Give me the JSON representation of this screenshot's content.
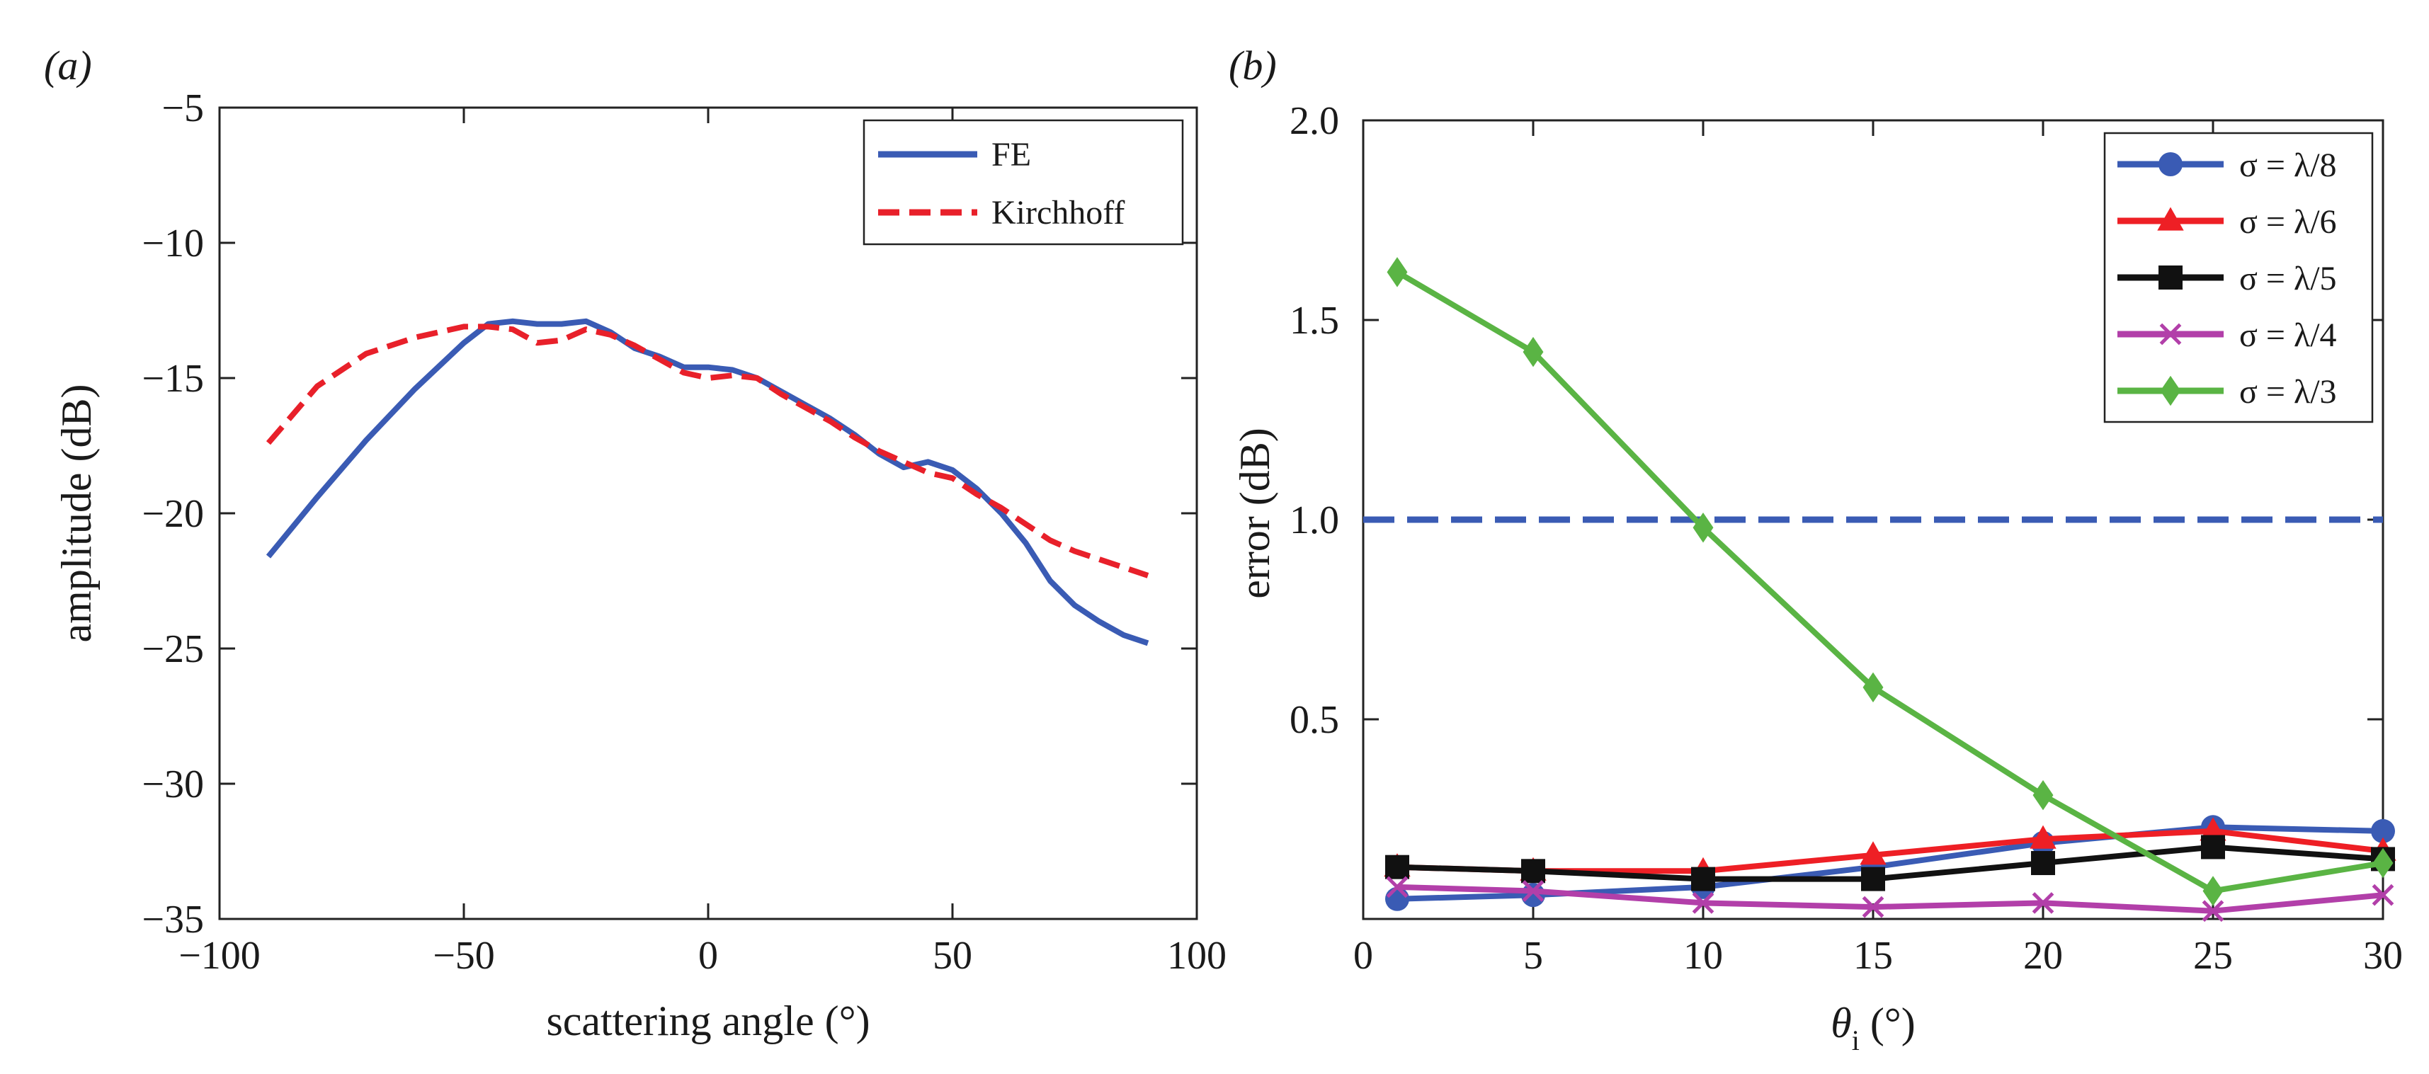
{
  "chart_data": [
    {
      "panel": "(a)",
      "type": "line",
      "xlabel": "scattering angle (°)",
      "ylabel": "amplitude (dB)",
      "xlim": [
        -100,
        100
      ],
      "ylim": [
        -35,
        -5
      ],
      "xticks": [
        -100,
        -50,
        0,
        50,
        100
      ],
      "yticks": [
        -35,
        -30,
        -25,
        -20,
        -15,
        -10,
        -5
      ],
      "xtick_labels": [
        "−100",
        "−50",
        "0",
        "50",
        "100"
      ],
      "ytick_labels": [
        "−35",
        "−30",
        "−25",
        "−20",
        "−15",
        "−10",
        "−5"
      ],
      "legend_position": "top-right",
      "series": [
        {
          "name": "FE",
          "color": "#3a5bb4",
          "style": "solid",
          "x": [
            -90,
            -80,
            -70,
            -60,
            -50,
            -45,
            -40,
            -35,
            -30,
            -25,
            -20,
            -15,
            -10,
            -5,
            0,
            5,
            10,
            15,
            20,
            25,
            30,
            35,
            40,
            45,
            50,
            55,
            60,
            65,
            70,
            75,
            80,
            85,
            90
          ],
          "y": [
            -21.6,
            -19.4,
            -17.3,
            -15.4,
            -13.7,
            -13.0,
            -12.9,
            -13.0,
            -13.0,
            -12.9,
            -13.3,
            -13.9,
            -14.2,
            -14.6,
            -14.6,
            -14.7,
            -15.0,
            -15.5,
            -16.0,
            -16.5,
            -17.1,
            -17.8,
            -18.3,
            -18.1,
            -18.4,
            -19.1,
            -20.0,
            -21.1,
            -22.5,
            -23.4,
            -24.0,
            -24.5,
            -24.8
          ]
        },
        {
          "name": "Kirchhoff",
          "color": "#e8202a",
          "style": "dashed",
          "x": [
            -90,
            -80,
            -70,
            -60,
            -50,
            -45,
            -40,
            -35,
            -30,
            -25,
            -20,
            -15,
            -10,
            -5,
            0,
            5,
            10,
            15,
            20,
            25,
            30,
            35,
            40,
            45,
            50,
            55,
            60,
            65,
            70,
            75,
            80,
            85,
            90
          ],
          "y": [
            -17.4,
            -15.3,
            -14.1,
            -13.5,
            -13.1,
            -13.1,
            -13.2,
            -13.7,
            -13.6,
            -13.2,
            -13.4,
            -13.8,
            -14.3,
            -14.8,
            -15.0,
            -14.9,
            -15.0,
            -15.6,
            -16.1,
            -16.6,
            -17.2,
            -17.7,
            -18.1,
            -18.5,
            -18.7,
            -19.3,
            -19.8,
            -20.4,
            -21.0,
            -21.4,
            -21.7,
            -22.0,
            -22.3
          ]
        }
      ]
    },
    {
      "panel": "(b)",
      "type": "line",
      "xlabel_symbol": "θ",
      "xlabel_subscript": "i",
      "xlabel_unit": " (°)",
      "ylabel": "error (dB)",
      "xlim": [
        0,
        30
      ],
      "ylim": [
        0,
        2.0
      ],
      "xticks": [
        0,
        5,
        10,
        15,
        20,
        25,
        30
      ],
      "yticks": [
        0.5,
        1.0,
        1.5,
        2.0
      ],
      "xtick_labels": [
        "0",
        "5",
        "10",
        "15",
        "20",
        "25",
        "30"
      ],
      "ytick_labels": [
        "0.5",
        "1.0",
        "1.5",
        "2.0"
      ],
      "threshold": {
        "y": 1.0,
        "color": "#3a5bb4",
        "style": "dashed"
      },
      "legend_position": "top-right",
      "series": [
        {
          "name": "σ = λ/8",
          "color": "#3a5bb4",
          "marker": "circle",
          "x": [
            1,
            5,
            10,
            15,
            20,
            25,
            30
          ],
          "y": [
            0.05,
            0.06,
            0.08,
            0.13,
            0.19,
            0.23,
            0.22
          ]
        },
        {
          "name": "σ = λ/6",
          "color": "#ee1f25",
          "marker": "triangle",
          "x": [
            1,
            5,
            10,
            15,
            20,
            25,
            30
          ],
          "y": [
            0.13,
            0.12,
            0.12,
            0.16,
            0.2,
            0.22,
            0.17
          ]
        },
        {
          "name": "σ = λ/5",
          "color": "#111111",
          "marker": "square",
          "x": [
            1,
            5,
            10,
            15,
            20,
            25,
            30
          ],
          "y": [
            0.13,
            0.12,
            0.1,
            0.1,
            0.14,
            0.18,
            0.15
          ]
        },
        {
          "name": "σ = λ/4",
          "color": "#b23fa9",
          "marker": "x",
          "x": [
            1,
            5,
            10,
            15,
            20,
            25,
            30
          ],
          "y": [
            0.08,
            0.07,
            0.04,
            0.03,
            0.04,
            0.02,
            0.06
          ]
        },
        {
          "name": "σ = λ/3",
          "color": "#5ab444",
          "marker": "diamond",
          "x": [
            1,
            5,
            10,
            15,
            20,
            25,
            30
          ],
          "y": [
            1.62,
            1.42,
            0.98,
            0.58,
            0.31,
            0.07,
            0.14
          ]
        }
      ]
    }
  ]
}
